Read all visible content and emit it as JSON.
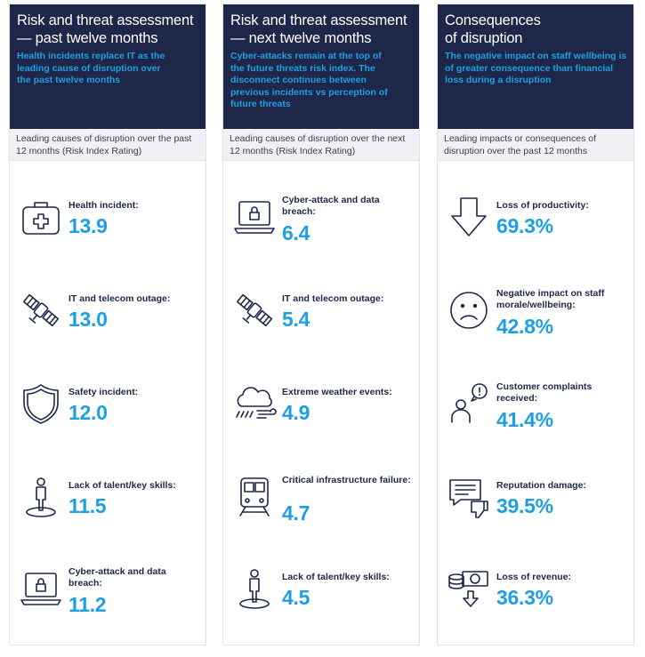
{
  "columns": [
    {
      "title_line1": "Risk and threat assessment",
      "title_line2": "— past twelve months",
      "summary": "Health incidents replace IT as the leading cause of disruption over the past twelve months",
      "subheading": "Leading causes of disruption over the past 12 months (Risk Index Rating)",
      "items": [
        {
          "icon": "first-aid-kit-icon",
          "label": "Health incident:",
          "value": "13.9"
        },
        {
          "icon": "satellite-icon",
          "label": "IT and telecom outage:",
          "value": "13.0"
        },
        {
          "icon": "shield-icon",
          "label": "Safety incident:",
          "value": "12.0"
        },
        {
          "icon": "person-pin-icon",
          "label": "Lack of talent/key skills:",
          "value": "11.5"
        },
        {
          "icon": "laptop-lock-icon",
          "label": "Cyber-attack and data breach:",
          "value": "11.2"
        }
      ]
    },
    {
      "title_line1": "Risk and threat assessment",
      "title_line2": "— next twelve months",
      "summary": "Cyber-attacks remain at the top of the future threats risk index. The disconnect continues between previous incidents vs perception of future threats",
      "subheading": "Leading causes of disruption over the next 12 months (Risk Index Rating)",
      "items": [
        {
          "icon": "laptop-lock-icon",
          "label": "Cyber-attack and data breach:",
          "value": "6.4"
        },
        {
          "icon": "satellite-icon",
          "label": "IT and telecom outage:",
          "value": "5.4"
        },
        {
          "icon": "storm-cloud-icon",
          "label": "Extreme weather events:",
          "value": "4.9"
        },
        {
          "icon": "train-icon",
          "label": "Critical infrastructure failure:",
          "value": "4.7"
        },
        {
          "icon": "person-pin-icon",
          "label": "Lack of talent/key skills:",
          "value": "4.5"
        }
      ]
    },
    {
      "title_line1": "Consequences",
      "title_line2": "of disruption",
      "summary": "The negative impact on staff wellbeing is of greater consequence than financial loss during a disruption",
      "subheading": "Leading impacts or consequences of disruption over the past 12 months",
      "items": [
        {
          "icon": "down-arrow-icon",
          "label": "Loss of productivity:",
          "value": "69.3%"
        },
        {
          "icon": "sad-face-icon",
          "label": "Negative impact on staff morale/wellbeing:",
          "value": "42.8%"
        },
        {
          "icon": "complaint-person-icon",
          "label": "Customer complaints received:",
          "value": "41.4%"
        },
        {
          "icon": "thumbs-down-chat-icon",
          "label": "Reputation damage:",
          "value": "39.5%"
        },
        {
          "icon": "money-loss-icon",
          "label": "Loss of revenue:",
          "value": "36.3%"
        }
      ]
    }
  ]
}
